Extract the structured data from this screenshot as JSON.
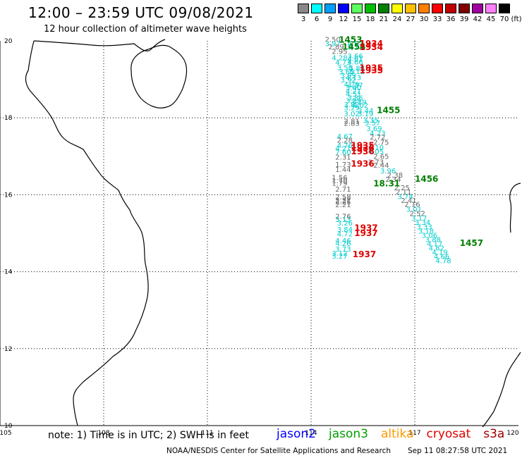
{
  "title": "12:00 – 23:59 UTC 09/08/2021",
  "subtitle": "12 hour collection of altimeter wave heights",
  "legend": {
    "unit": "(ft)",
    "bins": [
      {
        "label": "3",
        "color": "#888888"
      },
      {
        "label": "6",
        "color": "#00ffff"
      },
      {
        "label": "9",
        "color": "#00a0ff"
      },
      {
        "label": "12",
        "color": "#0000ff"
      },
      {
        "label": "15",
        "color": "#60ff60"
      },
      {
        "label": "18",
        "color": "#00c000"
      },
      {
        "label": "21",
        "color": "#008000"
      },
      {
        "label": "24",
        "color": "#ffff00"
      },
      {
        "label": "27",
        "color": "#ffc000"
      },
      {
        "label": "30",
        "color": "#ff8000"
      },
      {
        "label": "33",
        "color": "#ff0000"
      },
      {
        "label": "36",
        "color": "#c00000"
      },
      {
        "label": "39",
        "color": "#800000"
      },
      {
        "label": "42",
        "color": "#a000a0"
      },
      {
        "label": "45",
        "color": "#ff80ff"
      },
      {
        "label": "70",
        "color": "#000000"
      }
    ]
  },
  "axes": {
    "lon_ticks": [
      "105",
      "108",
      "111",
      "114",
      "117",
      "120"
    ],
    "lat_ticks": [
      "20",
      "18",
      "16",
      "14",
      "12",
      "10"
    ]
  },
  "observations": [
    {
      "lon": 114.4,
      "lat": 19.97,
      "v": "2.50",
      "c": "#666666"
    },
    {
      "lon": 114.4,
      "lat": 19.86,
      "v": "3.97",
      "c": "#00cccc"
    },
    {
      "lon": 114.5,
      "lat": 19.78,
      "v": "2.89",
      "c": "#666666"
    },
    {
      "lon": 114.6,
      "lat": 19.66,
      "v": "2.95",
      "c": "#666666"
    },
    {
      "lon": 114.6,
      "lat": 19.5,
      "v": "4.28",
      "c": "#00cccc"
    },
    {
      "lon": 114.7,
      "lat": 19.38,
      "v": "4.73",
      "c": "#00cccc"
    },
    {
      "lon": 115.05,
      "lat": 19.86,
      "v": "4.57",
      "c": "#00cccc"
    },
    {
      "lon": 115.05,
      "lat": 19.78,
      "v": "5.12",
      "c": "#00cccc"
    },
    {
      "lon": 115.05,
      "lat": 19.54,
      "v": "3.66",
      "c": "#00cccc"
    },
    {
      "lon": 115.05,
      "lat": 19.47,
      "v": "4.61",
      "c": "#00cccc"
    },
    {
      "lon": 115.05,
      "lat": 19.39,
      "v": "4.66",
      "c": "#00cccc"
    },
    {
      "lon": 114.75,
      "lat": 19.24,
      "v": "3.50",
      "c": "#00cccc"
    },
    {
      "lon": 115.1,
      "lat": 19.22,
      "v": "5.88",
      "c": "#00cccc"
    },
    {
      "lon": 114.8,
      "lat": 19.13,
      "v": "3.60",
      "c": "#00cccc"
    },
    {
      "lon": 115.1,
      "lat": 19.14,
      "v": "5.12",
      "c": "#00cccc"
    },
    {
      "lon": 114.85,
      "lat": 19.04,
      "v": "3.99",
      "c": "#00cccc"
    },
    {
      "lon": 115.0,
      "lat": 18.98,
      "v": "4.13",
      "c": "#00cccc"
    },
    {
      "lon": 114.85,
      "lat": 18.92,
      "v": "3.92",
      "c": "#00cccc"
    },
    {
      "lon": 114.95,
      "lat": 18.8,
      "v": "4.29",
      "c": "#00cccc"
    },
    {
      "lon": 115.05,
      "lat": 18.78,
      "v": "4.37",
      "c": "#00cccc"
    },
    {
      "lon": 115.0,
      "lat": 18.72,
      "v": "3.40",
      "c": "#00cccc"
    },
    {
      "lon": 115.0,
      "lat": 18.63,
      "v": "4.21",
      "c": "#00cccc"
    },
    {
      "lon": 115.0,
      "lat": 18.55,
      "v": "4.51",
      "c": "#00cccc"
    },
    {
      "lon": 115.05,
      "lat": 18.45,
      "v": "3.86",
      "c": "#00cccc"
    },
    {
      "lon": 115.0,
      "lat": 18.38,
      "v": "3.59",
      "c": "#00cccc"
    },
    {
      "lon": 115.15,
      "lat": 18.34,
      "v": "3.19",
      "c": "#00cccc"
    },
    {
      "lon": 114.95,
      "lat": 18.28,
      "v": "3.82",
      "c": "#00cccc"
    },
    {
      "lon": 115.2,
      "lat": 18.26,
      "v": "4.02",
      "c": "#00cccc"
    },
    {
      "lon": 114.95,
      "lat": 18.2,
      "v": "3.29",
      "c": "#00cccc"
    },
    {
      "lon": 115.35,
      "lat": 18.12,
      "v": "3.44",
      "c": "#00cccc"
    },
    {
      "lon": 114.95,
      "lat": 18.04,
      "v": "3.02",
      "c": "#00cccc"
    },
    {
      "lon": 115.35,
      "lat": 18.04,
      "v": "3.19",
      "c": "#00cccc"
    },
    {
      "lon": 115.5,
      "lat": 17.88,
      "v": "3.35",
      "c": "#00cccc"
    },
    {
      "lon": 114.95,
      "lat": 17.85,
      "v": "2.81",
      "c": "#666666"
    },
    {
      "lon": 114.95,
      "lat": 17.79,
      "v": "2.83",
      "c": "#666666"
    },
    {
      "lon": 115.55,
      "lat": 17.8,
      "v": "3.57",
      "c": "#00cccc"
    },
    {
      "lon": 115.6,
      "lat": 17.66,
      "v": "3.69",
      "c": "#00cccc"
    },
    {
      "lon": 115.7,
      "lat": 17.54,
      "v": "4.23",
      "c": "#00cccc"
    },
    {
      "lon": 114.75,
      "lat": 17.45,
      "v": "4.67",
      "c": "#00cccc"
    },
    {
      "lon": 115.7,
      "lat": 17.44,
      "v": "2.72",
      "c": "#666666"
    },
    {
      "lon": 114.75,
      "lat": 17.35,
      "v": "2.28",
      "c": "#666666"
    },
    {
      "lon": 115.8,
      "lat": 17.3,
      "v": "2.75",
      "c": "#666666"
    },
    {
      "lon": 114.75,
      "lat": 17.22,
      "v": "4.76",
      "c": "#00cccc"
    },
    {
      "lon": 115.65,
      "lat": 17.16,
      "v": "4.10",
      "c": "#00cccc"
    },
    {
      "lon": 114.7,
      "lat": 17.14,
      "v": "4.21",
      "c": "#00cccc"
    },
    {
      "lon": 114.7,
      "lat": 17.04,
      "v": "7.60",
      "c": "#00cccc"
    },
    {
      "lon": 115.65,
      "lat": 17.06,
      "v": "4.05",
      "c": "#00cccc"
    },
    {
      "lon": 114.7,
      "lat": 16.91,
      "v": "2.31",
      "c": "#666666"
    },
    {
      "lon": 115.8,
      "lat": 16.93,
      "v": "2.65",
      "c": "#666666"
    },
    {
      "lon": 115.65,
      "lat": 16.79,
      "v": "2.73",
      "c": "#666666"
    },
    {
      "lon": 114.7,
      "lat": 16.72,
      "v": "1.73",
      "c": "#666666"
    },
    {
      "lon": 115.8,
      "lat": 16.7,
      "v": "2.44",
      "c": "#666666"
    },
    {
      "lon": 114.7,
      "lat": 16.59,
      "v": "1.44",
      "c": "#666666"
    },
    {
      "lon": 116.0,
      "lat": 16.56,
      "v": "3.96",
      "c": "#00cccc"
    },
    {
      "lon": 116.2,
      "lat": 16.45,
      "v": "2.38",
      "c": "#666666"
    },
    {
      "lon": 114.6,
      "lat": 16.38,
      "v": "1.56",
      "c": "#666666"
    },
    {
      "lon": 116.15,
      "lat": 16.34,
      "v": "2.34",
      "c": "#666666"
    },
    {
      "lon": 114.6,
      "lat": 16.3,
      "v": "1.70",
      "c": "#666666"
    },
    {
      "lon": 114.6,
      "lat": 16.24,
      "v": "1.79",
      "c": "#666666"
    },
    {
      "lon": 116.4,
      "lat": 16.12,
      "v": "2.25",
      "c": "#666666"
    },
    {
      "lon": 114.7,
      "lat": 16.08,
      "v": "2.71",
      "c": "#666666"
    },
    {
      "lon": 116.45,
      "lat": 16.01,
      "v": "2.11",
      "c": "#666666"
    },
    {
      "lon": 116.5,
      "lat": 15.89,
      "v": "3.74",
      "c": "#00cccc"
    },
    {
      "lon": 114.7,
      "lat": 15.88,
      "v": "2.58",
      "c": "#666666"
    },
    {
      "lon": 114.7,
      "lat": 15.8,
      "v": "2.22",
      "c": "#666666"
    },
    {
      "lon": 116.6,
      "lat": 15.79,
      "v": "2.41",
      "c": "#666666"
    },
    {
      "lon": 114.7,
      "lat": 15.75,
      "v": "2.25",
      "c": "#666666"
    },
    {
      "lon": 116.7,
      "lat": 15.69,
      "v": "2.16",
      "c": "#666666"
    },
    {
      "lon": 114.7,
      "lat": 15.68,
      "v": "2.21",
      "c": "#666666"
    },
    {
      "lon": 116.75,
      "lat": 15.56,
      "v": "3.01",
      "c": "#00cccc"
    },
    {
      "lon": 116.85,
      "lat": 15.45,
      "v": "2.52",
      "c": "#666666"
    },
    {
      "lon": 114.7,
      "lat": 15.38,
      "v": "2.76",
      "c": "#666666"
    },
    {
      "lon": 116.9,
      "lat": 15.33,
      "v": "3.17",
      "c": "#00cccc"
    },
    {
      "lon": 114.7,
      "lat": 15.29,
      "v": "3.13",
      "c": "#00cccc"
    },
    {
      "lon": 117.0,
      "lat": 15.22,
      "v": "3.34",
      "c": "#00cccc"
    },
    {
      "lon": 114.75,
      "lat": 15.2,
      "v": "3.26",
      "c": "#00cccc"
    },
    {
      "lon": 117.05,
      "lat": 15.1,
      "v": "3.33",
      "c": "#00cccc"
    },
    {
      "lon": 114.75,
      "lat": 15.04,
      "v": "3.84",
      "c": "#00cccc"
    },
    {
      "lon": 117.1,
      "lat": 14.99,
      "v": "3.18",
      "c": "#00cccc"
    },
    {
      "lon": 114.75,
      "lat": 14.92,
      "v": "4.72",
      "c": "#00cccc"
    },
    {
      "lon": 117.2,
      "lat": 14.88,
      "v": "3.06",
      "c": "#00cccc"
    },
    {
      "lon": 117.3,
      "lat": 14.77,
      "v": "3.88",
      "c": "#00cccc"
    },
    {
      "lon": 114.7,
      "lat": 14.74,
      "v": "4.46",
      "c": "#00cccc"
    },
    {
      "lon": 114.7,
      "lat": 14.67,
      "v": "4.26",
      "c": "#00cccc"
    },
    {
      "lon": 117.35,
      "lat": 14.66,
      "v": "4.17",
      "c": "#00cccc"
    },
    {
      "lon": 117.4,
      "lat": 14.55,
      "v": "4.82",
      "c": "#00cccc"
    },
    {
      "lon": 114.7,
      "lat": 14.52,
      "v": "3.73",
      "c": "#00cccc"
    },
    {
      "lon": 117.5,
      "lat": 14.44,
      "v": "4.19",
      "c": "#00cccc"
    },
    {
      "lon": 114.6,
      "lat": 14.41,
      "v": "3.12",
      "c": "#00cccc"
    },
    {
      "lon": 114.6,
      "lat": 14.34,
      "v": "3.27",
      "c": "#00cccc"
    },
    {
      "lon": 117.55,
      "lat": 14.33,
      "v": "4.66",
      "c": "#00cccc"
    },
    {
      "lon": 117.6,
      "lat": 14.22,
      "v": "4.78",
      "c": "#00cccc"
    }
  ],
  "time_labels": [
    {
      "lon": 114.8,
      "lat": 19.95,
      "t": "1453",
      "c": "#008000"
    },
    {
      "lon": 114.9,
      "lat": 19.77,
      "t": "1454",
      "c": "#008000"
    },
    {
      "lon": 115.4,
      "lat": 19.85,
      "t": "1934",
      "c": "#e00000"
    },
    {
      "lon": 115.4,
      "lat": 19.76,
      "t": "1934",
      "c": "#e00000"
    },
    {
      "lon": 115.4,
      "lat": 19.22,
      "t": "1935",
      "c": "#e00000"
    },
    {
      "lon": 115.4,
      "lat": 19.16,
      "t": "1935",
      "c": "#e00000"
    },
    {
      "lon": 115.9,
      "lat": 18.12,
      "t": "1455",
      "c": "#008000"
    },
    {
      "lon": 115.15,
      "lat": 17.21,
      "t": "1935",
      "c": "#e00000"
    },
    {
      "lon": 115.15,
      "lat": 17.14,
      "t": "1936",
      "c": "#e00000"
    },
    {
      "lon": 115.15,
      "lat": 17.05,
      "t": "1936",
      "c": "#e00000"
    },
    {
      "lon": 115.15,
      "lat": 16.73,
      "t": "1936",
      "c": "#e00000"
    },
    {
      "lon": 117.0,
      "lat": 16.34,
      "t": "1456",
      "c": "#008000"
    },
    {
      "lon": 115.8,
      "lat": 16.22,
      "t": "18.31",
      "c": "#008000"
    },
    {
      "lon": 115.25,
      "lat": 15.06,
      "t": "1937",
      "c": "#e00000"
    },
    {
      "lon": 115.25,
      "lat": 14.93,
      "t": "1937",
      "c": "#e00000"
    },
    {
      "lon": 118.3,
      "lat": 14.67,
      "t": "1457",
      "c": "#008000"
    },
    {
      "lon": 115.2,
      "lat": 14.38,
      "t": "1937",
      "c": "#e00000"
    }
  ],
  "note": "note:  1) Time is in UTC;  2) SWH is in feet",
  "satellites": [
    {
      "name": "jason2",
      "color": "#0000ff"
    },
    {
      "name": "jason3",
      "color": "#00a000"
    },
    {
      "name": "altika",
      "color": "#ff9900"
    },
    {
      "name": "cryosat",
      "color": "#e00000"
    },
    {
      "name": "s3a",
      "color": "#a00000"
    }
  ],
  "credit": "NOAA/NESDIS Center for Satellite Applications and Research",
  "timestamp": "Sep 11 08:27:58 UTC 2021"
}
